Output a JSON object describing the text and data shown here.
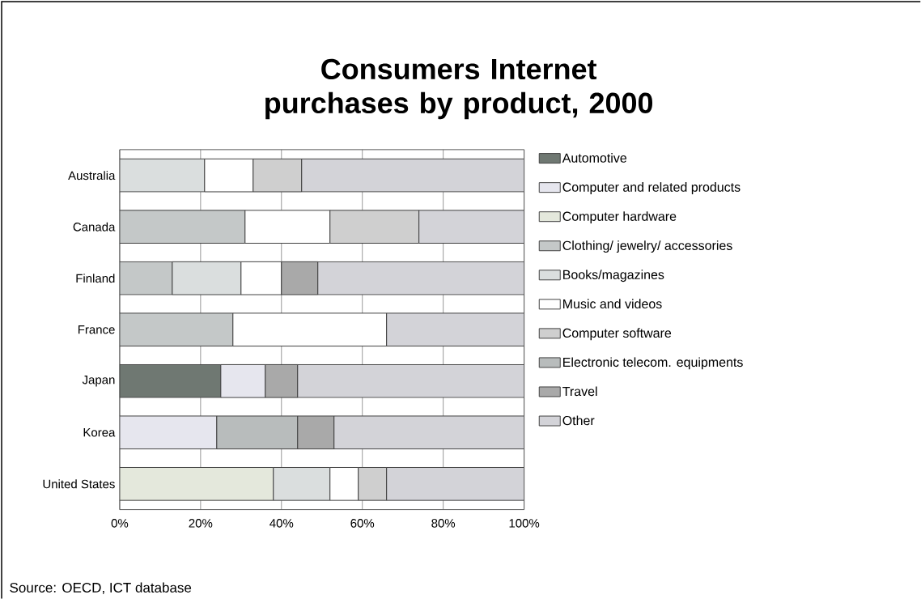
{
  "chart_data": {
    "type": "bar",
    "orientation": "horizontal",
    "stacked": true,
    "title": "Consumers Internet purchases by product, 2000",
    "categories": [
      "Australia",
      "Canada",
      "Finland",
      "France",
      "Japan",
      "Korea",
      "United States"
    ],
    "series": [
      {
        "name": "Automotive",
        "color": "#6f7872",
        "values": [
          null,
          null,
          null,
          null,
          25,
          null,
          null
        ]
      },
      {
        "name": "Computer and related products",
        "color": "#e6e6ee",
        "values": [
          null,
          null,
          null,
          null,
          11,
          24,
          null
        ]
      },
      {
        "name": "Computer hardware",
        "color": "#e4e8dc",
        "values": [
          null,
          null,
          null,
          null,
          null,
          null,
          38
        ]
      },
      {
        "name": "Clothing/ jewelry/ accessories",
        "color": "#c4c8c8",
        "values": [
          null,
          31,
          13,
          28,
          null,
          null,
          null
        ]
      },
      {
        "name": "Books/magazines",
        "color": "#dadede",
        "values": [
          21,
          null,
          17,
          null,
          null,
          null,
          14
        ]
      },
      {
        "name": "Music and videos",
        "color": "#ffffff",
        "values": [
          12,
          21,
          10,
          38,
          null,
          null,
          7
        ]
      },
      {
        "name": "Computer software",
        "color": "#cfcfcf",
        "values": [
          12,
          22,
          null,
          null,
          null,
          null,
          7
        ]
      },
      {
        "name": "Electronic telecom. equipments",
        "color": "#b8bcbc",
        "values": [
          null,
          null,
          null,
          null,
          null,
          20,
          null
        ]
      },
      {
        "name": "Travel",
        "color": "#a9a9a9",
        "values": [
          null,
          null,
          9,
          null,
          8,
          9,
          null
        ]
      },
      {
        "name": "Other",
        "color": "#d3d3d8",
        "values": [
          55,
          26,
          51,
          34,
          56,
          47,
          34
        ]
      }
    ],
    "xlim": [
      0,
      100
    ],
    "xticks": [
      {
        "value": 0,
        "label": "0%"
      },
      {
        "value": 20,
        "label": "20%"
      },
      {
        "value": 40,
        "label": "40%"
      },
      {
        "value": 60,
        "label": "60%"
      },
      {
        "value": 80,
        "label": "80%"
      },
      {
        "value": 100,
        "label": "100%"
      }
    ],
    "grid": "x",
    "legend": "right",
    "annotations": [
      "Source: OECD, ICT database"
    ]
  }
}
